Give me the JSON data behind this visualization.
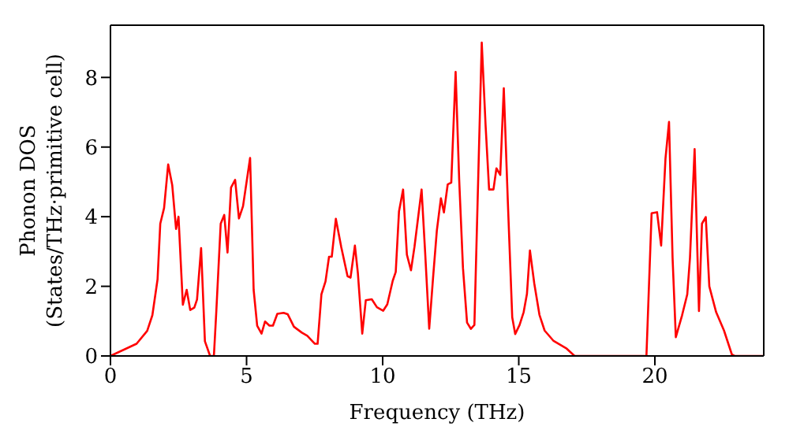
{
  "chart_data": {
    "type": "line",
    "xlabel": "Frequency (THz)",
    "ylabel": "Phonon DOS\n(States/THz·primitive cell)",
    "xlim": [
      0,
      24
    ],
    "ylim": [
      0,
      9.5
    ],
    "xticks": [
      0,
      5,
      10,
      15,
      20
    ],
    "yticks": [
      0,
      2,
      4,
      6,
      8
    ],
    "grid": false,
    "legend": false,
    "marker": "none",
    "line_style": "solid",
    "x": [
      0,
      0.96,
      1.35,
      1.54,
      1.73,
      1.83,
      1.97,
      2.12,
      2.27,
      2.41,
      2.5,
      2.66,
      2.8,
      2.93,
      3.08,
      3.18,
      3.33,
      3.47,
      3.66,
      3.8,
      3.89,
      4.05,
      4.18,
      4.3,
      4.43,
      4.58,
      4.72,
      4.87,
      5.13,
      5.26,
      5.39,
      5.55,
      5.68,
      5.84,
      5.97,
      6.13,
      6.36,
      6.51,
      6.74,
      7.03,
      7.23,
      7.51,
      7.61,
      7.75,
      7.9,
      8.03,
      8.13,
      8.28,
      8.48,
      8.71,
      8.82,
      8.98,
      9.09,
      9.25,
      9.38,
      9.6,
      9.79,
      10.02,
      10.17,
      10.37,
      10.48,
      10.6,
      10.75,
      10.89,
      11.04,
      11.17,
      11.43,
      11.56,
      11.71,
      11.85,
      11.99,
      12.14,
      12.25,
      12.39,
      12.52,
      12.68,
      12.81,
      12.95,
      13.1,
      13.24,
      13.37,
      13.64,
      13.78,
      13.91,
      14.07,
      14.18,
      14.32,
      14.45,
      14.6,
      14.76,
      14.87,
      15.03,
      15.18,
      15.3,
      15.41,
      15.57,
      15.76,
      15.95,
      16.28,
      16.76,
      17.05,
      19.69,
      19.88,
      20.08,
      20.23,
      20.39,
      20.52,
      20.65,
      20.77,
      21.0,
      21.19,
      21.29,
      21.46,
      21.62,
      21.73,
      21.87,
      22.0,
      22.25,
      22.54,
      22.83,
      22.93,
      23.99
    ],
    "series": [
      {
        "color": "#ff0000",
        "values": [
          0,
          0.35,
          0.72,
          1.17,
          2.2,
          3.8,
          4.25,
          5.5,
          4.9,
          3.65,
          4.0,
          1.47,
          1.9,
          1.32,
          1.39,
          1.62,
          3.1,
          0.42,
          0,
          0,
          1.3,
          3.8,
          4.05,
          2.97,
          4.84,
          5.06,
          3.95,
          4.3,
          5.69,
          1.9,
          0.87,
          0.64,
          0.99,
          0.87,
          0.87,
          1.21,
          1.24,
          1.2,
          0.84,
          0.67,
          0.58,
          0.35,
          0.35,
          1.77,
          2.14,
          2.85,
          2.85,
          3.94,
          3.12,
          2.29,
          2.25,
          3.17,
          2.37,
          0.64,
          1.6,
          1.63,
          1.4,
          1.3,
          1.48,
          2.16,
          2.41,
          4.15,
          4.78,
          2.91,
          2.46,
          3.14,
          4.78,
          2.98,
          0.78,
          2.23,
          3.6,
          4.53,
          4.12,
          4.93,
          4.98,
          8.16,
          5.08,
          2.53,
          0.96,
          0.78,
          0.89,
          9.0,
          6.64,
          4.78,
          4.78,
          5.39,
          5.2,
          7.69,
          4.4,
          1.11,
          0.63,
          0.89,
          1.26,
          1.78,
          3.03,
          2.08,
          1.18,
          0.73,
          0.43,
          0.21,
          0,
          0,
          4.1,
          4.13,
          3.17,
          5.67,
          6.72,
          2.82,
          0.54,
          1.17,
          1.77,
          2.82,
          5.94,
          1.29,
          3.8,
          3.99,
          2.0,
          1.26,
          0.73,
          0.04,
          0,
          0
        ]
      }
    ]
  }
}
